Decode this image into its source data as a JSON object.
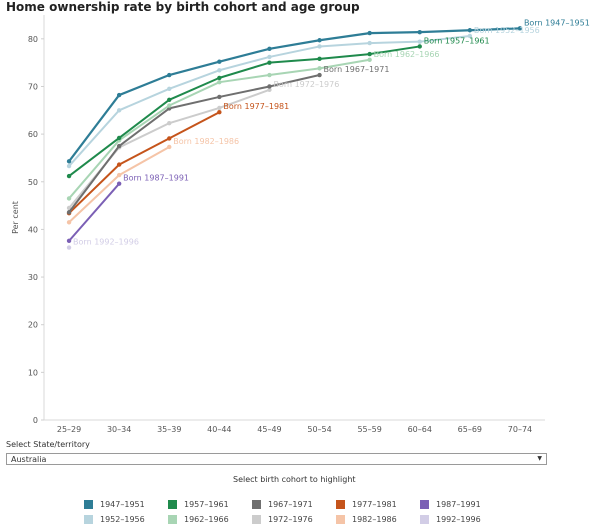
{
  "title": "Home ownership rate by birth cohort and age group",
  "chart_data": {
    "type": "line",
    "title": "Home ownership rate by birth cohort and age group",
    "xlabel": "",
    "ylabel": "Per cent",
    "categories": [
      "25–29",
      "30–34",
      "35–39",
      "40–44",
      "45–49",
      "50–54",
      "55–59",
      "60–64",
      "65–69",
      "70–74"
    ],
    "yticks": [
      0,
      10,
      20,
      30,
      40,
      50,
      60,
      70,
      80
    ],
    "ylim": [
      0,
      85
    ],
    "grid": false,
    "series": [
      {
        "name": "1947–1951",
        "label": "Born 1947–1951",
        "color": "#2e7d96",
        "values": [
          54.3,
          68.2,
          72.4,
          75.2,
          77.9,
          79.7,
          81.2,
          81.4,
          81.8,
          82.2
        ]
      },
      {
        "name": "1952–1956",
        "label": "Born 1952–1956",
        "color": "#b7d4de",
        "values": [
          53.3,
          65.0,
          69.5,
          73.4,
          76.2,
          78.4,
          79.1,
          79.4,
          80.6,
          null
        ]
      },
      {
        "name": "1957–1961",
        "label": "Born 1957–1961",
        "color": "#1f8a4c",
        "values": [
          51.2,
          59.2,
          67.2,
          71.8,
          75.0,
          75.8,
          76.8,
          78.4,
          null,
          null
        ]
      },
      {
        "name": "1962–1966",
        "label": "Born 1962–1966",
        "color": "#a8d5b4",
        "values": [
          46.5,
          58.7,
          66.0,
          70.9,
          72.4,
          73.8,
          75.6,
          null,
          null,
          null
        ]
      },
      {
        "name": "1967–1971",
        "label": "Born 1967–1971",
        "color": "#6f6f6f",
        "values": [
          43.6,
          57.5,
          65.4,
          67.8,
          70.0,
          72.4,
          null,
          null,
          null,
          null
        ]
      },
      {
        "name": "1972–1976",
        "label": "Born 1972–1976",
        "color": "#cccccc",
        "values": [
          44.5,
          57.2,
          62.3,
          65.5,
          69.3,
          null,
          null,
          null,
          null,
          null
        ]
      },
      {
        "name": "1977–1981",
        "label": "Born 1977–1981",
        "color": "#c5541b",
        "values": [
          43.4,
          53.6,
          59.1,
          64.6,
          null,
          null,
          null,
          null,
          null,
          null
        ]
      },
      {
        "name": "1982–1986",
        "label": "Born 1982–1986",
        "color": "#f5c4a7",
        "values": [
          41.5,
          51.4,
          57.3,
          null,
          null,
          null,
          null,
          null,
          null,
          null
        ]
      },
      {
        "name": "1987–1991",
        "label": "Born 1987–1991",
        "color": "#7b5fb5",
        "values": [
          37.6,
          49.6,
          null,
          null,
          null,
          null,
          null,
          null,
          null,
          null
        ]
      },
      {
        "name": "1992–1996",
        "label": "Born 1992–1996",
        "color": "#d2cde6",
        "values": [
          36.2,
          null,
          null,
          null,
          null,
          null,
          null,
          null,
          null,
          null
        ]
      }
    ]
  },
  "controls": {
    "state_label": "Select State/territory",
    "state_value": "Australia",
    "highlight_label": "Select birth cohort to highlight"
  },
  "legend": [
    {
      "label": "1947–1951",
      "color": "#2e7d96"
    },
    {
      "label": "1957–1961",
      "color": "#1f8a4c"
    },
    {
      "label": "1967–1971",
      "color": "#6f6f6f"
    },
    {
      "label": "1977–1981",
      "color": "#c5541b"
    },
    {
      "label": "1987–1991",
      "color": "#7b5fb5"
    },
    {
      "label": "1952–1956",
      "color": "#b7d4de"
    },
    {
      "label": "1962–1966",
      "color": "#a8d5b4"
    },
    {
      "label": "1972–1976",
      "color": "#cccccc"
    },
    {
      "label": "1982–1986",
      "color": "#f5c4a7"
    },
    {
      "label": "1992–1996",
      "color": "#d2cde6"
    }
  ]
}
